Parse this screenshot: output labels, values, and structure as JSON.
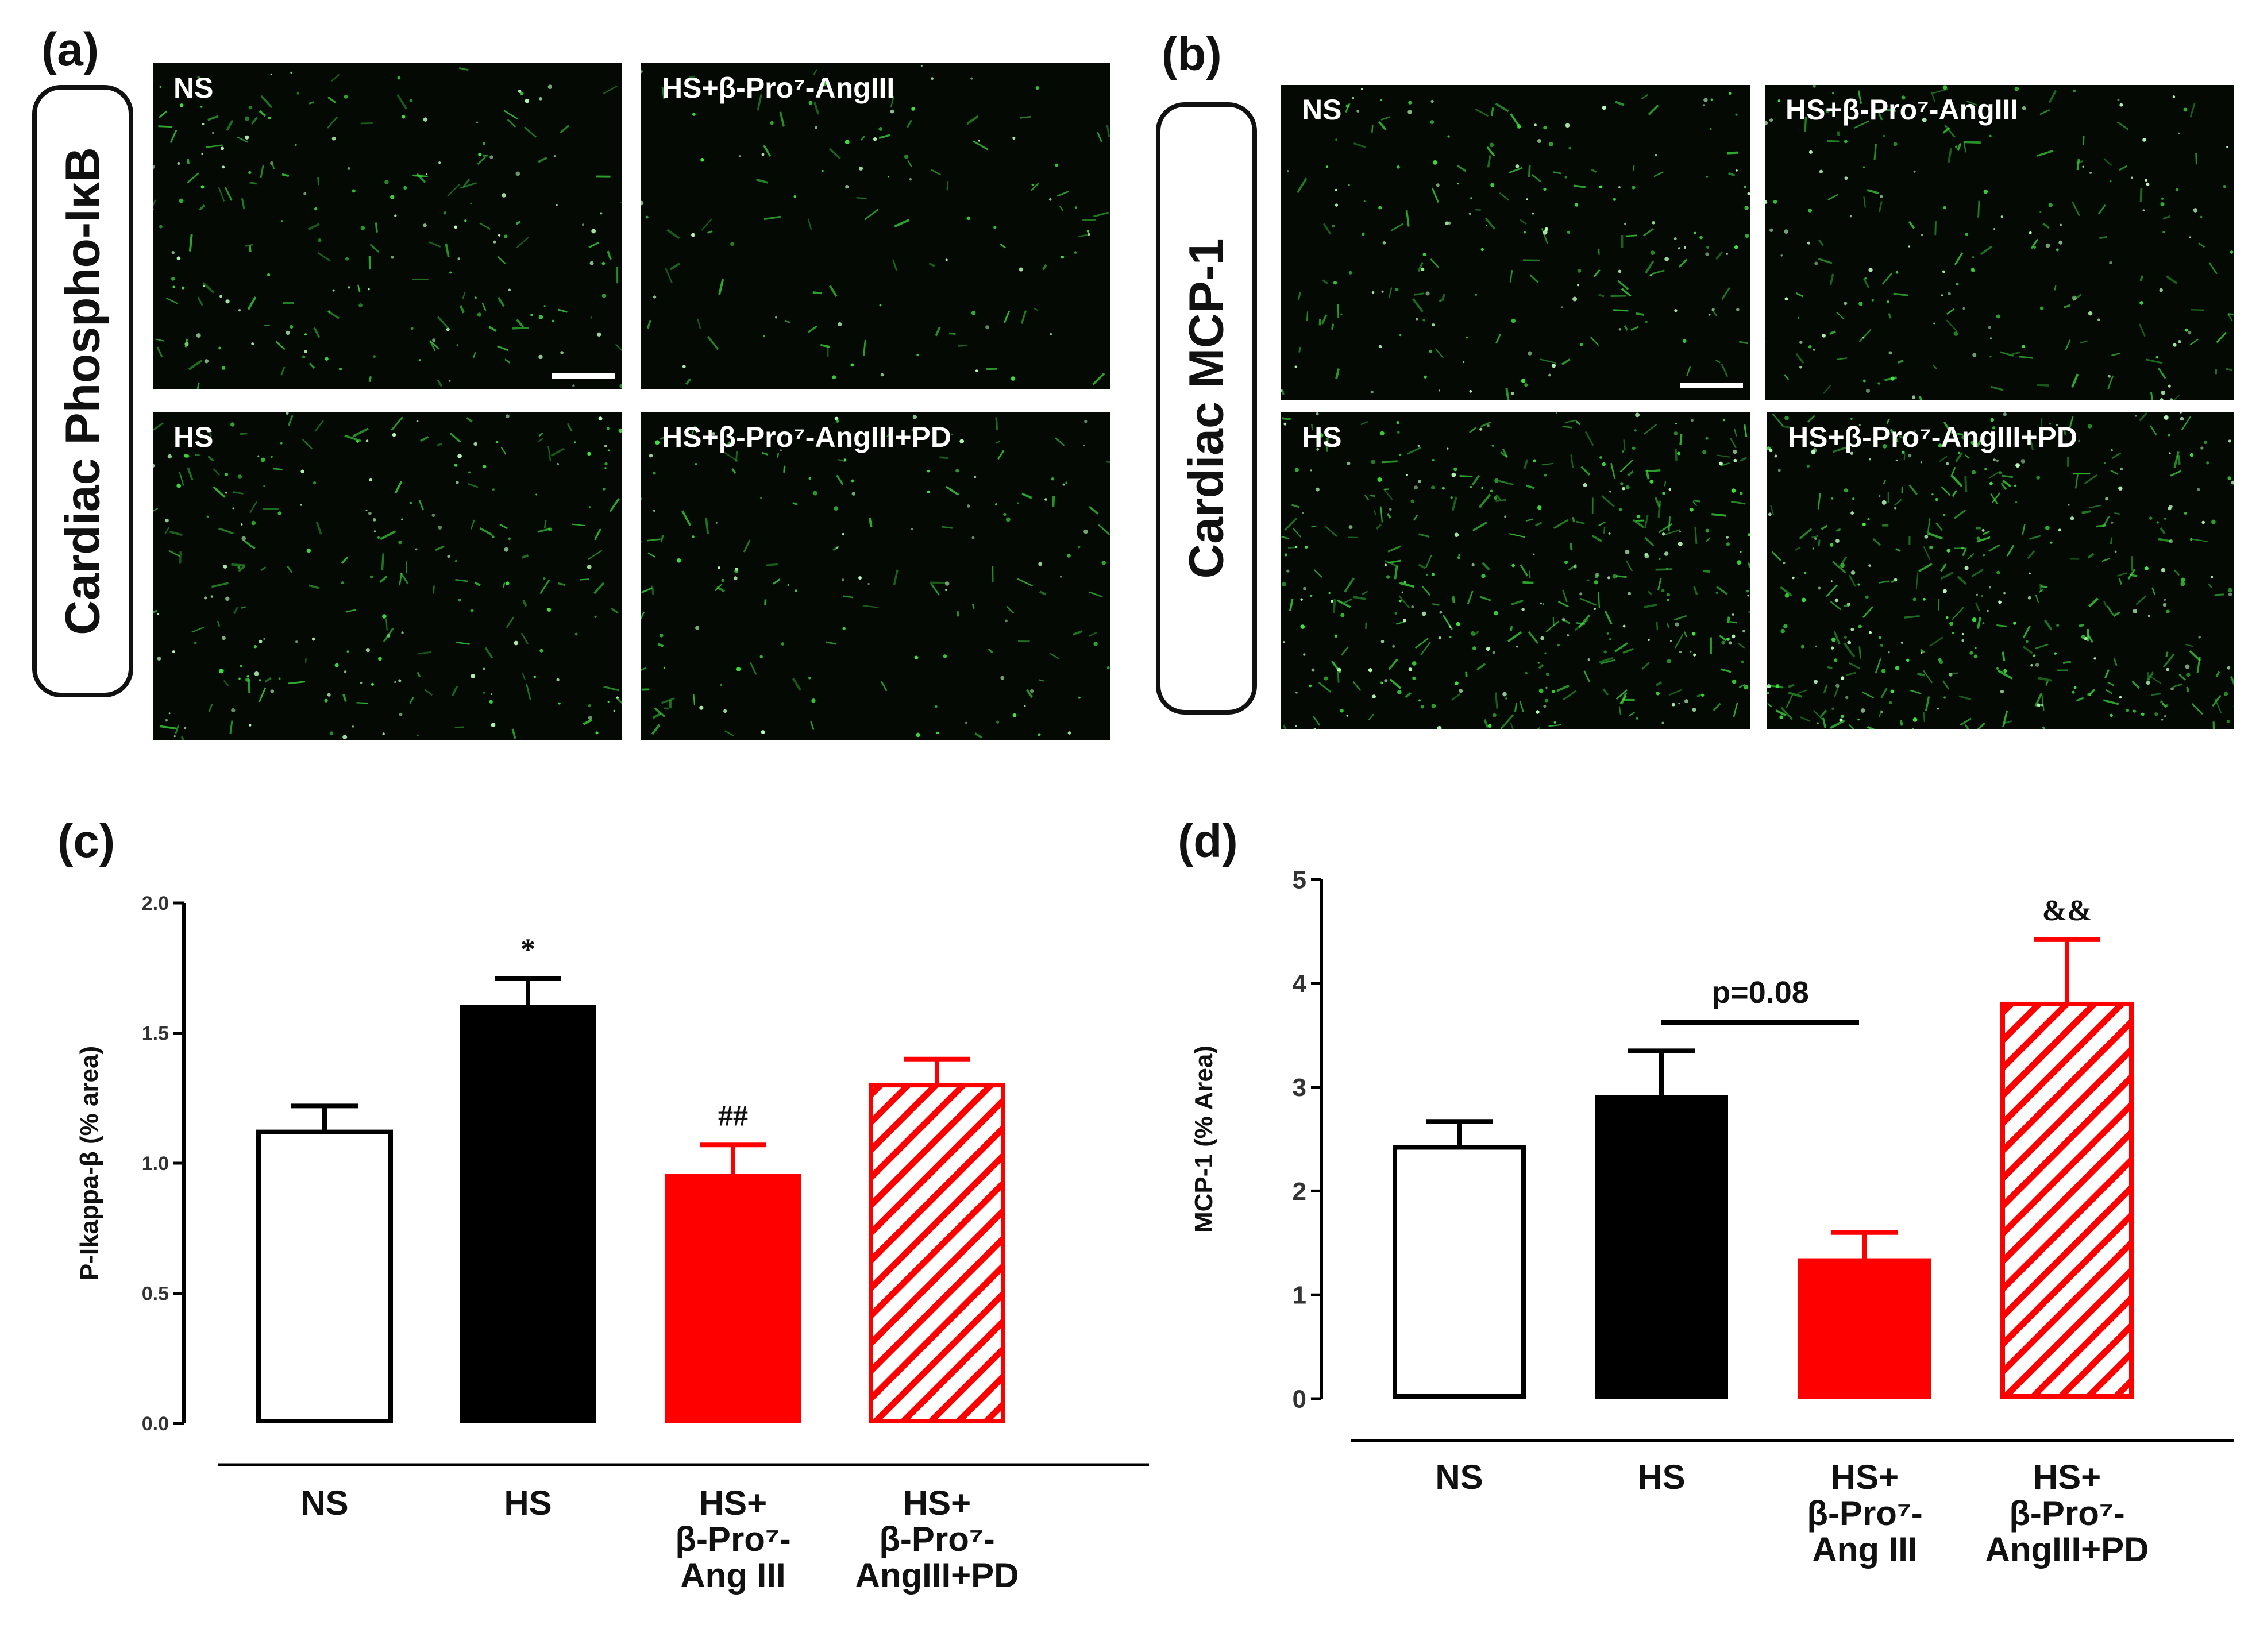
{
  "panels": {
    "a": {
      "label": "(a)",
      "side_label": "Cardiac Phospho-IκB",
      "images": [
        "NS",
        "HS+β-Pro⁷-AngIII",
        "HS",
        "HS+β-Pro⁷-AngIII+PD"
      ]
    },
    "b": {
      "label": "(b)",
      "side_label": "Cardiac MCP-1",
      "images": [
        "NS",
        "HS+β-Pro⁷-AngIII",
        "HS",
        "HS+β-Pro⁷-AngIII+PD"
      ]
    },
    "c": {
      "label": "(c)"
    },
    "d": {
      "label": "(d)"
    }
  },
  "colors": {
    "black": "#000000",
    "red": "#ff0000",
    "white": "#ffffff",
    "fluor_green": "#3ee83e"
  },
  "chart_data": [
    {
      "id": "c",
      "type": "bar",
      "ylabel": "P-Ikappa-β (% area)",
      "ylim": [
        0,
        2.0
      ],
      "yticks": [
        "0.0",
        "0.5",
        "1.0",
        "1.5",
        "2.0"
      ],
      "categories": [
        [
          "NS"
        ],
        [
          "HS"
        ],
        [
          "HS+",
          "β-Pro⁷-",
          "Ang III"
        ],
        [
          "HS+",
          "β-Pro⁷-",
          "AngIII+PD"
        ]
      ],
      "values": [
        1.12,
        1.6,
        0.95,
        1.3
      ],
      "errors": [
        0.1,
        0.11,
        0.12,
        0.1
      ],
      "fills": [
        "white",
        "black",
        "red",
        "red-hatched"
      ],
      "annotations": [
        "",
        "*",
        "##",
        ""
      ]
    },
    {
      "id": "d",
      "type": "bar",
      "ylabel": "MCP-1 (% Area)",
      "ylim": [
        0,
        5
      ],
      "yticks": [
        "0",
        "1",
        "2",
        "3",
        "4",
        "5"
      ],
      "categories": [
        [
          "NS"
        ],
        [
          "HS"
        ],
        [
          "HS+",
          "β-Pro⁷-",
          "Ang III"
        ],
        [
          "HS+",
          "β-Pro⁷-",
          "AngIII+PD"
        ]
      ],
      "values": [
        2.42,
        2.9,
        1.33,
        3.8
      ],
      "errors": [
        0.25,
        0.45,
        0.27,
        0.62
      ],
      "fills": [
        "white",
        "black",
        "red",
        "red-hatched"
      ],
      "annotations": [
        "",
        "",
        "",
        "&&"
      ],
      "comparison": {
        "from": 1,
        "to": 2,
        "label": "p=0.08"
      }
    }
  ]
}
